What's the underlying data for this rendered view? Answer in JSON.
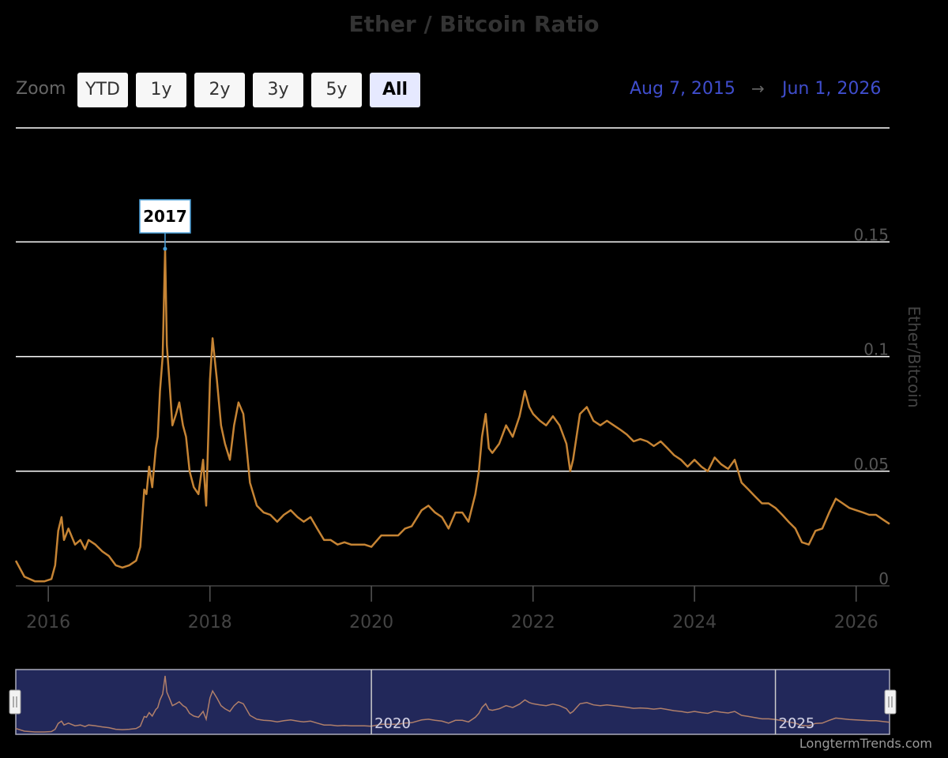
{
  "title": "Ether / Bitcoin Ratio",
  "zoom": {
    "label": "Zoom",
    "buttons": [
      "YTD",
      "1y",
      "2y",
      "3y",
      "5y",
      "All"
    ],
    "active": "All"
  },
  "range": {
    "from": "Aug 7, 2015",
    "arrow": "→",
    "to": "Jun 1, 2026"
  },
  "credit": "LongtermTrends.com",
  "annotation": {
    "label": "2017",
    "date": "2017-06-12",
    "value": 0.147
  },
  "navigator": {
    "labels": [
      "2020",
      "2025"
    ]
  },
  "chart_data": {
    "type": "line",
    "title": "Ether / Bitcoin Ratio",
    "ylabel": "Ether/Bitcoin",
    "xlabel": "",
    "ylim": [
      0,
      0.15
    ],
    "yticks": [
      "0",
      "0.05",
      "0.1",
      "0.15"
    ],
    "xticks": [
      "2016",
      "2018",
      "2020",
      "2022",
      "2024",
      "2026"
    ],
    "line_color": "#c68434",
    "grid": true,
    "series": [
      {
        "x": [
          "2015-08-07",
          "2015-09-15",
          "2015-11-01",
          "2015-12-15",
          "2016-01-15",
          "2016-02-01",
          "2016-02-15",
          "2016-03-01",
          "2016-03-12",
          "2016-04-01",
          "2016-05-01",
          "2016-05-25",
          "2016-06-15",
          "2016-07-01",
          "2016-08-01",
          "2016-09-01",
          "2016-10-01",
          "2016-11-01",
          "2016-12-01",
          "2017-01-01",
          "2017-02-01",
          "2017-02-20",
          "2017-03-10",
          "2017-03-20",
          "2017-04-01",
          "2017-04-15",
          "2017-05-01",
          "2017-05-10",
          "2017-05-20",
          "2017-06-01",
          "2017-06-12",
          "2017-06-20",
          "2017-07-01",
          "2017-07-15",
          "2017-08-01",
          "2017-08-15",
          "2017-09-01",
          "2017-09-15",
          "2017-10-01",
          "2017-10-20",
          "2017-11-10",
          "2017-12-01",
          "2017-12-15",
          "2018-01-01",
          "2018-01-13",
          "2018-02-01",
          "2018-02-20",
          "2018-03-10",
          "2018-04-01",
          "2018-04-20",
          "2018-05-10",
          "2018-06-01",
          "2018-07-01",
          "2018-08-01",
          "2018-09-01",
          "2018-10-01",
          "2018-11-01",
          "2018-12-01",
          "2019-01-01",
          "2019-02-01",
          "2019-03-01",
          "2019-04-01",
          "2019-05-01",
          "2019-06-01",
          "2019-07-01",
          "2019-08-01",
          "2019-09-01",
          "2019-10-01",
          "2019-11-01",
          "2019-12-01",
          "2020-01-01",
          "2020-02-15",
          "2020-03-15",
          "2020-05-01",
          "2020-06-01",
          "2020-07-01",
          "2020-08-15",
          "2020-09-15",
          "2020-10-15",
          "2020-11-15",
          "2020-12-15",
          "2021-01-15",
          "2021-02-15",
          "2021-03-15",
          "2021-04-15",
          "2021-05-01",
          "2021-05-15",
          "2021-06-01",
          "2021-06-15",
          "2021-07-01",
          "2021-08-01",
          "2021-09-01",
          "2021-10-01",
          "2021-11-01",
          "2021-11-25",
          "2021-12-15",
          "2022-01-01",
          "2022-02-01",
          "2022-03-01",
          "2022-04-01",
          "2022-05-01",
          "2022-06-01",
          "2022-06-18",
          "2022-07-01",
          "2022-08-01",
          "2022-09-01",
          "2022-10-01",
          "2022-11-01",
          "2022-12-01",
          "2023-01-01",
          "2023-02-01",
          "2023-03-01",
          "2023-04-01",
          "2023-05-01",
          "2023-06-01",
          "2023-07-01",
          "2023-08-01",
          "2023-09-01",
          "2023-10-01",
          "2023-11-01",
          "2023-12-01",
          "2024-01-01",
          "2024-02-01",
          "2024-03-01",
          "2024-04-01",
          "2024-05-01",
          "2024-06-01",
          "2024-07-01",
          "2024-08-01",
          "2024-09-01",
          "2024-10-01",
          "2024-11-01",
          "2024-12-01",
          "2025-01-01",
          "2025-02-01",
          "2025-03-01",
          "2025-04-01",
          "2025-05-01",
          "2025-06-01",
          "2025-07-01",
          "2025-08-01",
          "2025-09-01",
          "2025-10-01",
          "2025-11-01",
          "2025-12-01",
          "2026-01-01",
          "2026-02-01",
          "2026-03-01",
          "2026-04-01",
          "2026-05-01",
          "2026-06-01"
        ],
        "y": [
          0.011,
          0.004,
          0.002,
          0.002,
          0.003,
          0.009,
          0.024,
          0.03,
          0.02,
          0.025,
          0.018,
          0.02,
          0.016,
          0.02,
          0.018,
          0.015,
          0.013,
          0.009,
          0.008,
          0.009,
          0.011,
          0.017,
          0.042,
          0.04,
          0.052,
          0.043,
          0.06,
          0.065,
          0.085,
          0.1,
          0.147,
          0.105,
          0.09,
          0.07,
          0.075,
          0.08,
          0.07,
          0.065,
          0.05,
          0.043,
          0.04,
          0.055,
          0.035,
          0.09,
          0.108,
          0.09,
          0.07,
          0.062,
          0.055,
          0.07,
          0.08,
          0.075,
          0.045,
          0.035,
          0.032,
          0.031,
          0.028,
          0.031,
          0.033,
          0.03,
          0.028,
          0.03,
          0.025,
          0.02,
          0.02,
          0.018,
          0.019,
          0.018,
          0.018,
          0.018,
          0.017,
          0.022,
          0.022,
          0.022,
          0.025,
          0.026,
          0.033,
          0.035,
          0.032,
          0.03,
          0.025,
          0.032,
          0.032,
          0.028,
          0.04,
          0.05,
          0.065,
          0.075,
          0.06,
          0.058,
          0.062,
          0.07,
          0.065,
          0.074,
          0.085,
          0.078,
          0.075,
          0.072,
          0.07,
          0.074,
          0.07,
          0.062,
          0.05,
          0.055,
          0.075,
          0.078,
          0.072,
          0.07,
          0.072,
          0.07,
          0.068,
          0.066,
          0.063,
          0.064,
          0.063,
          0.061,
          0.063,
          0.06,
          0.057,
          0.055,
          0.052,
          0.055,
          0.052,
          0.05,
          0.056,
          0.053,
          0.051,
          0.055,
          0.045,
          0.042,
          0.039,
          0.036,
          0.036,
          0.034,
          0.031,
          0.028,
          0.025,
          0.019,
          0.018,
          0.024,
          0.025,
          0.032,
          0.038,
          0.036,
          0.034,
          0.033,
          0.032,
          0.031,
          0.031,
          0.029,
          0.027
        ]
      }
    ]
  }
}
